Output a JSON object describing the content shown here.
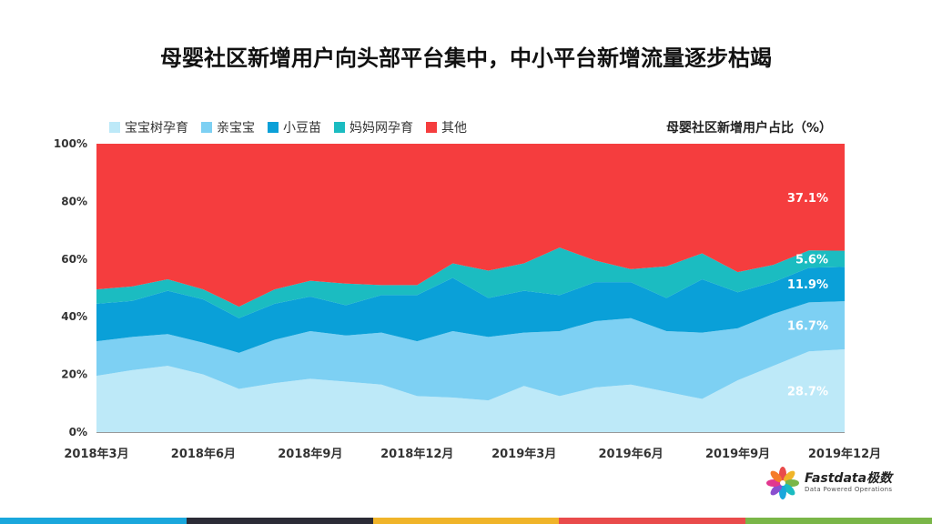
{
  "title": "母婴社区新增用户向头部平台集中，中小平台新增流量逐步枯竭",
  "y_axis_title": "母婴社区新增用户占比（%）",
  "logo": {
    "name": "Fastdata极数",
    "tagline": "Data Powered Operations"
  },
  "bottom_bar_colors": [
    "#1aa7dc",
    "#2b2b36",
    "#f0b429",
    "#e94b4b",
    "#7ab648"
  ],
  "chart_data": {
    "type": "area",
    "stacked": true,
    "x": [
      "2018年3月",
      "2018年4月",
      "2018年5月",
      "2018年6月",
      "2018年7月",
      "2018年8月",
      "2018年9月",
      "2018年10月",
      "2018年11月",
      "2018年12月",
      "2019年1月",
      "2019年2月",
      "2019年3月",
      "2019年4月",
      "2019年5月",
      "2019年6月",
      "2019年7月",
      "2019年8月",
      "2019年9月",
      "2019年10月",
      "2019年11月",
      "2019年12月"
    ],
    "x_tick_labels": [
      "2018年3月",
      "2018年6月",
      "2018年9月",
      "2018年12月",
      "2019年3月",
      "2019年6月",
      "2019年9月",
      "2019年12月"
    ],
    "x_tick_indices": [
      0,
      3,
      6,
      9,
      12,
      15,
      18,
      21
    ],
    "ylim": [
      0,
      100
    ],
    "y_ticks": [
      "0%",
      "20%",
      "40%",
      "60%",
      "80%",
      "100%"
    ],
    "legend_position": "top-left",
    "series": [
      {
        "name": "宝宝树孕育",
        "color": "#bde9f8",
        "values": [
          19.5,
          21.5,
          23,
          20,
          15,
          17,
          18.5,
          17.5,
          16.5,
          12.5,
          12,
          11,
          16,
          12.5,
          15.5,
          16.5,
          14,
          11.5,
          18,
          23,
          28,
          28.7
        ]
      },
      {
        "name": "亲宝宝",
        "color": "#7dd0f3",
        "values": [
          12,
          11.5,
          11,
          11,
          12.5,
          15,
          16.5,
          16,
          18,
          19,
          23,
          22,
          18.5,
          22.5,
          23,
          23,
          21,
          23,
          18,
          18,
          17,
          16.7
        ]
      },
      {
        "name": "小豆苗",
        "color": "#0aa0d8",
        "values": [
          13,
          12.5,
          15,
          15,
          12,
          12.5,
          12,
          10.5,
          13,
          16,
          18.5,
          13.5,
          14.5,
          12.5,
          13.5,
          12.5,
          11.5,
          18.5,
          12.5,
          11,
          12,
          11.9
        ]
      },
      {
        "name": "妈妈网孕育",
        "color": "#1bbcc1",
        "values": [
          5,
          5,
          4,
          3.5,
          4,
          5,
          5.5,
          7.5,
          3.5,
          3.5,
          5,
          9.5,
          9.5,
          16.5,
          7.5,
          4.5,
          11,
          9,
          7,
          6,
          6,
          5.6
        ]
      },
      {
        "name": "其他",
        "color": "#f53d3e",
        "values": [
          50.5,
          49.5,
          47,
          50.5,
          56.5,
          50.5,
          47.5,
          48.5,
          49,
          49,
          41.5,
          44,
          41.5,
          36,
          40.5,
          43.5,
          42.5,
          38,
          44.5,
          42,
          37,
          37.1
        ]
      }
    ],
    "data_labels": [
      {
        "series": "宝宝树孕育",
        "text": "28.7%"
      },
      {
        "series": "亲宝宝",
        "text": "16.7%"
      },
      {
        "series": "小豆苗",
        "text": "11.9%"
      },
      {
        "series": "妈妈网孕育",
        "text": "5.6%"
      },
      {
        "series": "其他",
        "text": "37.1%"
      }
    ]
  }
}
